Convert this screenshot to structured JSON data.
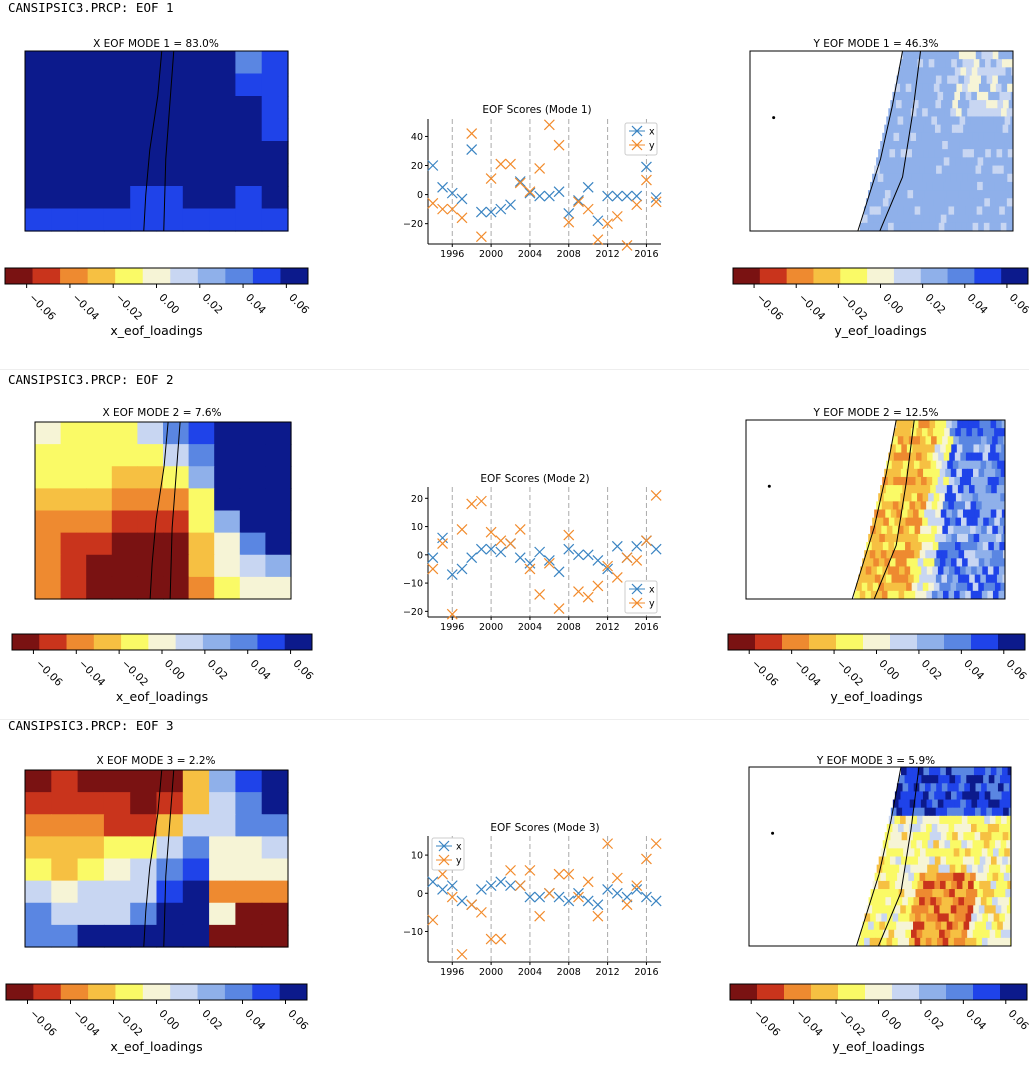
{
  "colors": {
    "palette": [
      "#7a1212",
      "#c9341c",
      "#ee8a30",
      "#f6c042",
      "#fafa66",
      "#f6f4d6",
      "#c8d6f2",
      "#8fb0ea",
      "#5a86e2",
      "#1f43e9",
      "#0c1a8c"
    ],
    "ocean": "#ffffff",
    "series_x": "#3a84c2",
    "series_y": "#f28b2c"
  },
  "colorbar": {
    "ticks": [
      "−0.06",
      "−0.04",
      "−0.02",
      "0.00",
      "0.02",
      "0.04",
      "0.06"
    ],
    "x_label": "x_eof_loadings",
    "y_label": "y_eof_loadings"
  },
  "rows": [
    {
      "title": "CANSIPSIC3.PRCP: EOF 1",
      "x_map_title": "X EOF MODE 1 = 83.0%",
      "y_map_title": "Y EOF MODE 1 = 46.3%",
      "x_map_colors": "x-eof-1 dominant dark blue",
      "scores": {
        "title": "EOF Scores (Mode 1)",
        "legend_pos": "top-right",
        "legend_x": "x",
        "legend_y": "y"
      }
    },
    {
      "title": "CANSIPSIC3.PRCP: EOF 2",
      "x_map_title": "X EOF MODE 2 = 7.6%",
      "y_map_title": "Y EOF MODE 2 = 12.5%",
      "scores": {
        "title": "EOF Scores (Mode 2)",
        "legend_pos": "bottom-right",
        "legend_x": "x",
        "legend_y": "y"
      }
    },
    {
      "title": "CANSIPSIC3.PRCP: EOF 3",
      "x_map_title": "X EOF MODE 3 = 2.2%",
      "y_map_title": "Y EOF MODE 3 = 5.9%",
      "scores": {
        "title": "EOF Scores (Mode 3)",
        "legend_pos": "top-left",
        "legend_x": "x",
        "legend_y": "y"
      }
    }
  ],
  "chart_data": [
    {
      "type": "scatter",
      "title": "EOF Scores (Mode 1)",
      "xticks": [
        "1996",
        "2000",
        "2004",
        "2008",
        "2012",
        "2016"
      ],
      "yticks": [
        "−20",
        "0",
        "20",
        "40"
      ],
      "xlim": [
        1993.5,
        2017.5
      ],
      "ylim": [
        -34,
        52
      ],
      "x": [
        1994,
        1995,
        1996,
        1997,
        1998,
        1999,
        2000,
        2001,
        2002,
        2003,
        2004,
        2005,
        2006,
        2007,
        2008,
        2009,
        2010,
        2011,
        2012,
        2013,
        2014,
        2015,
        2016,
        2017
      ],
      "series": [
        {
          "name": "x",
          "values": [
            20,
            5,
            1,
            -3,
            31,
            -12,
            -12,
            -10,
            -7,
            9,
            1,
            -1,
            -1,
            2,
            -13,
            -4,
            5,
            -18,
            -1,
            -1,
            -1,
            -1,
            19,
            -2
          ]
        },
        {
          "name": "y",
          "values": [
            -6,
            -10,
            -10,
            -16,
            42,
            -29,
            11,
            21,
            21,
            8,
            2,
            18,
            48,
            34,
            -19,
            -5,
            -10,
            -31,
            -20,
            -15,
            -35,
            -7,
            10,
            -5
          ]
        }
      ]
    },
    {
      "type": "scatter",
      "title": "EOF Scores (Mode 2)",
      "xticks": [
        "1996",
        "2000",
        "2004",
        "2008",
        "2012",
        "2016"
      ],
      "yticks": [
        "−20",
        "−10",
        "0",
        "10",
        "20"
      ],
      "xlim": [
        1993.5,
        2017.5
      ],
      "ylim": [
        -22,
        24
      ],
      "x": [
        1994,
        1995,
        1996,
        1997,
        1998,
        1999,
        2000,
        2001,
        2002,
        2003,
        2004,
        2005,
        2006,
        2007,
        2008,
        2009,
        2010,
        2011,
        2012,
        2013,
        2014,
        2015,
        2016,
        2017
      ],
      "series": [
        {
          "name": "x",
          "values": [
            -1,
            6,
            -7,
            -5,
            -1,
            2,
            2,
            1,
            4,
            -1,
            -3,
            1,
            -2,
            -6,
            2,
            0,
            0,
            -2,
            -5,
            3,
            -1,
            3,
            5,
            2
          ]
        },
        {
          "name": "y",
          "values": [
            -5,
            4,
            -21,
            9,
            18,
            19,
            8,
            5,
            4,
            9,
            -5,
            -14,
            -3,
            -19,
            7,
            -13,
            -15,
            -11,
            -4,
            -8,
            -1,
            -2,
            5,
            21
          ]
        }
      ]
    },
    {
      "type": "scatter",
      "title": "EOF Scores (Mode 3)",
      "xticks": [
        "1996",
        "2000",
        "2004",
        "2008",
        "2012",
        "2016"
      ],
      "yticks": [
        "−10",
        "0",
        "10"
      ],
      "xlim": [
        1993.5,
        2017.5
      ],
      "ylim": [
        -18,
        15
      ],
      "x": [
        1994,
        1995,
        1996,
        1997,
        1998,
        1999,
        2000,
        2001,
        2002,
        2003,
        2004,
        2005,
        2006,
        2007,
        2008,
        2009,
        2010,
        2011,
        2012,
        2013,
        2014,
        2015,
        2016,
        2017
      ],
      "series": [
        {
          "name": "x",
          "values": [
            3,
            1,
            2,
            -2,
            -3,
            1,
            2,
            3,
            2,
            2,
            -1,
            -1,
            0,
            -1,
            -2,
            0,
            -2,
            -3,
            1,
            0,
            -1,
            1,
            -1,
            -2
          ]
        },
        {
          "name": "y",
          "values": [
            -7,
            5,
            -1,
            -16,
            -3,
            -5,
            -12,
            -12,
            6,
            2,
            6,
            -6,
            0,
            5,
            5,
            -1,
            3,
            -6,
            13,
            4,
            -3,
            2,
            9,
            13
          ]
        }
      ]
    }
  ]
}
